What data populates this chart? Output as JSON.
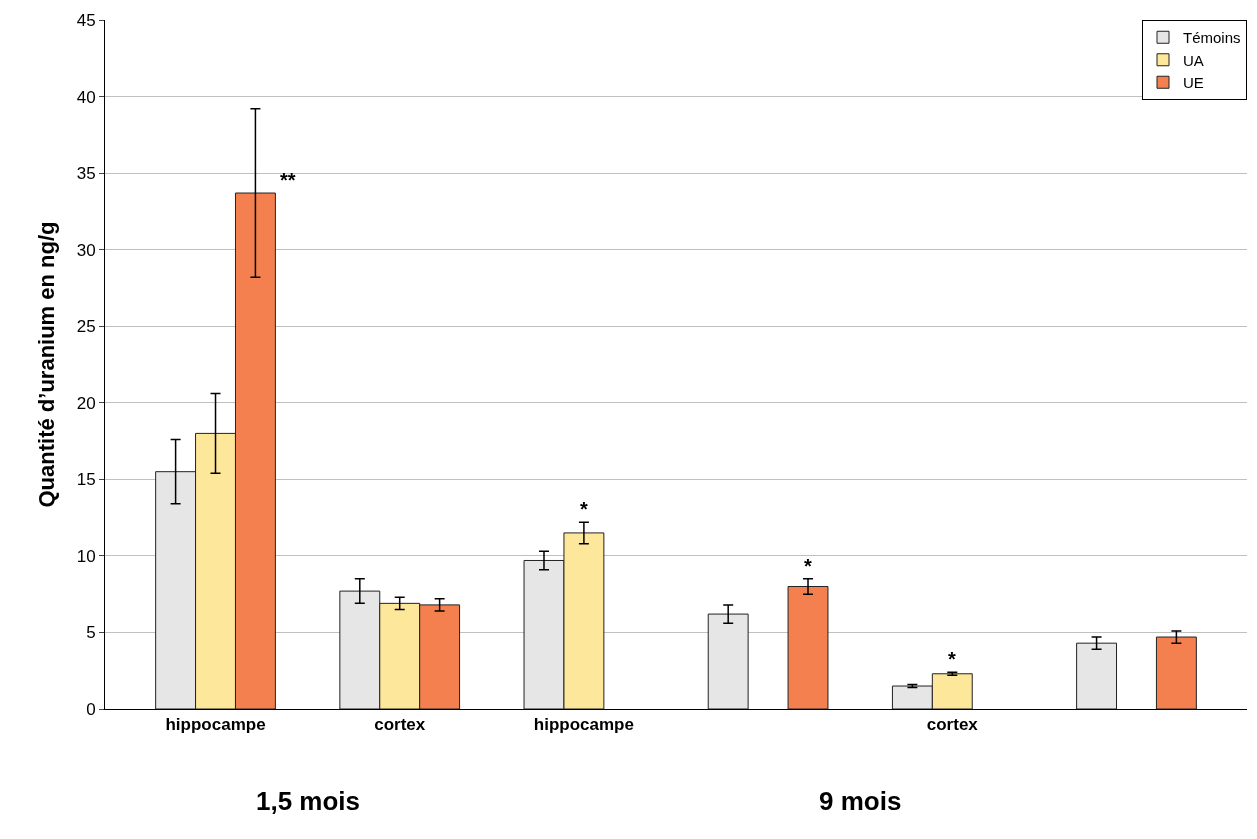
{
  "chart_data": {
    "type": "bar",
    "ylabel": "Quantité d’uranium en ng/g",
    "categories": [
      "hippocampe",
      "cortex",
      "hippocampe",
      null,
      "cortex",
      null
    ],
    "series": [
      {
        "name": "Témoins",
        "color": "#e6e6e6",
        "values": [
          15.5,
          7.7,
          9.7,
          6.2,
          1.5,
          4.3
        ],
        "errors": [
          2.1,
          0.8,
          0.6,
          0.6,
          0.1,
          0.4
        ]
      },
      {
        "name": "UA",
        "color": "#fde79a",
        "values": [
          18.0,
          6.9,
          11.5,
          null,
          2.3,
          null
        ],
        "errors": [
          2.6,
          0.4,
          0.7,
          null,
          0.1,
          null
        ],
        "value_labels": [
          null,
          null,
          "*",
          null,
          "*",
          null
        ]
      },
      {
        "name": "UE",
        "color": "#f4804f",
        "values": [
          33.7,
          6.8,
          null,
          8.0,
          null,
          4.7
        ],
        "errors": [
          5.5,
          0.4,
          null,
          0.5,
          null,
          0.4
        ],
        "value_labels": [
          "**",
          null,
          null,
          "*",
          null,
          null
        ]
      }
    ],
    "annotations": [
      "1,5 mois",
      "9 mois"
    ],
    "ylim": [
      0,
      45
    ],
    "yticks": [
      0,
      5,
      10,
      15,
      20,
      25,
      30,
      35,
      40,
      45
    ],
    "grid": "y",
    "legend": "top right"
  }
}
